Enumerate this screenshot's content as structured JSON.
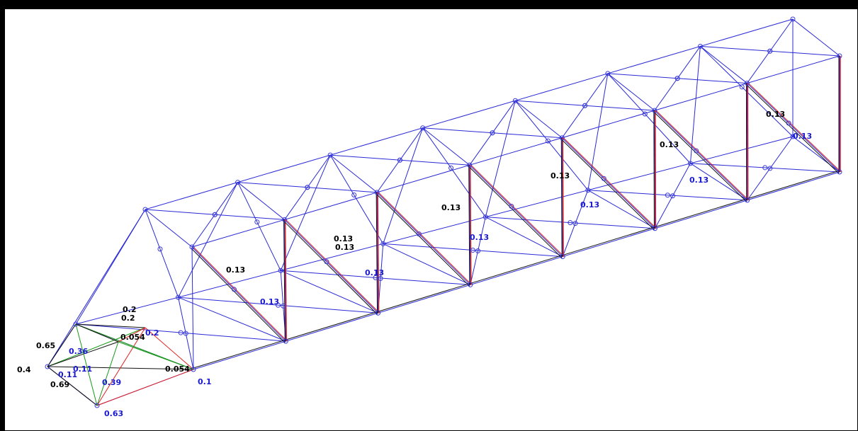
{
  "colors": {
    "member": "#2a2ad6",
    "node": "#3a3ad8",
    "force_black": "#111111",
    "force_red": "#e02020",
    "force_green": "#1a9a1a",
    "label_black": "#000000",
    "label_blue": "#1a1ad0",
    "background": "#ffffff",
    "frame": "#000000"
  },
  "labels": {
    "black": [
      "0.13",
      "0.13",
      "0.13",
      "0.13",
      "0.13",
      "0.13",
      "0.13",
      "0.2",
      "0.2",
      "0.054",
      "0.054",
      "0.65",
      "0.4",
      "0.69"
    ],
    "blue": [
      "0.13",
      "0.13",
      "0.13",
      "0.13",
      "0.13",
      "0.13",
      "0.1",
      "0.11",
      "0.2",
      "0.36",
      "0.39",
      "0.63",
      "0.11"
    ]
  }
}
